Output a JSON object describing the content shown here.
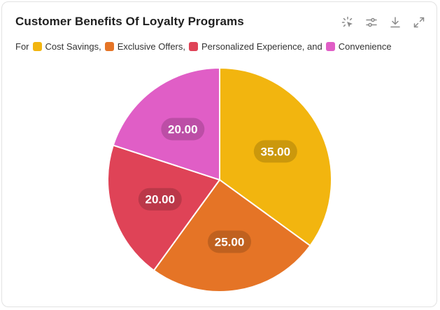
{
  "header": {
    "title": "Customer Benefits Of Loyalty Programs",
    "toolbar": [
      {
        "name": "select-icon",
        "label": ""
      },
      {
        "name": "filter-settings-icon",
        "label": ""
      },
      {
        "name": "download-icon",
        "label": ""
      },
      {
        "name": "expand-icon",
        "label": ""
      }
    ]
  },
  "legend": {
    "prefix": "For",
    "items": [
      {
        "label": "Cost Savings,",
        "color": "#F2B50F"
      },
      {
        "label": "Exclusive Offers,",
        "color": "#E57426"
      },
      {
        "label": "Personalized Experience, and",
        "color": "#DF4357"
      },
      {
        "label": "Convenience",
        "color": "#E05EC6"
      }
    ]
  },
  "chart_data": {
    "type": "pie",
    "title": "Customer Benefits Of Loyalty Programs",
    "legend_position": "top-left",
    "categories": [
      "Cost Savings",
      "Exclusive Offers",
      "Personalized Experience",
      "Convenience"
    ],
    "values": [
      35.0,
      25.0,
      20.0,
      20.0
    ],
    "labels": [
      "35.00",
      "25.00",
      "20.00",
      "20.00"
    ],
    "colors": [
      "#F2B50F",
      "#E57426",
      "#DF4357",
      "#E05EC6"
    ]
  }
}
